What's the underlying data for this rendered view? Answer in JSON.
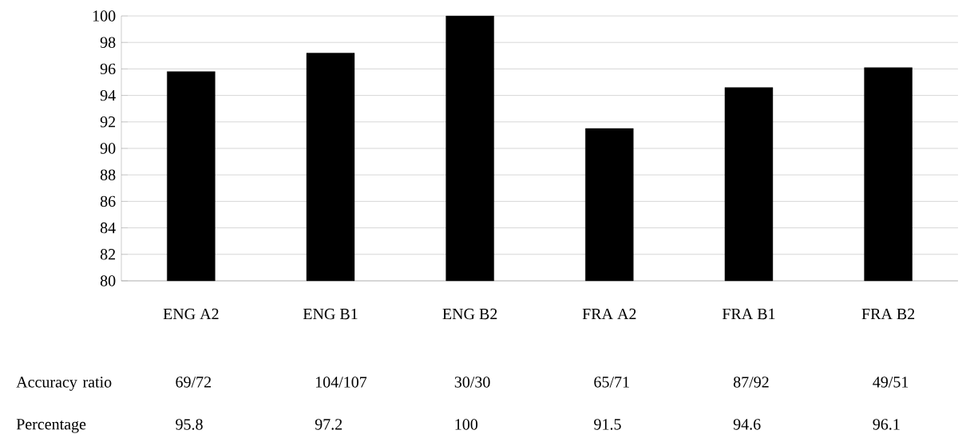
{
  "chart_data": {
    "type": "bar",
    "categories": [
      "ENG A2",
      "ENG B1",
      "ENG B2",
      "FRA A2",
      "FRA B1",
      "FRA B2"
    ],
    "values": [
      95.8,
      97.2,
      100,
      91.5,
      94.6,
      96.1
    ],
    "color": "#000000",
    "ylim": [
      80,
      100
    ],
    "yticks": [
      80,
      82,
      84,
      86,
      88,
      90,
      92,
      94,
      96,
      98,
      100
    ],
    "grid": "y",
    "data_labels": true,
    "annotations": [
      "Accuracy ratio",
      "Percentage",
      "69/72",
      "104/107",
      "30/30",
      "65/71",
      "87/92",
      "49/51"
    ]
  }
}
